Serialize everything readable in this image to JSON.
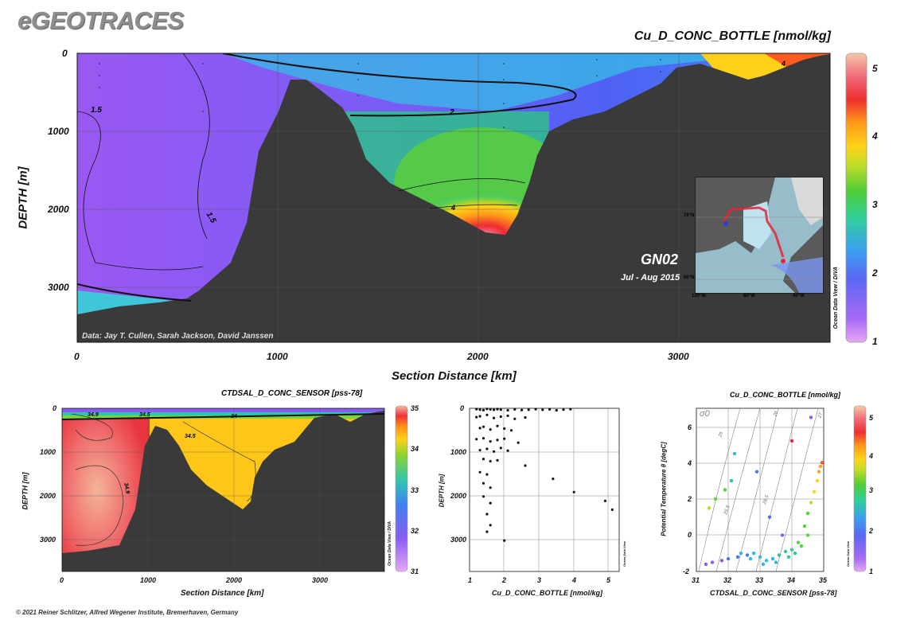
{
  "brand": "eGEOTRACES",
  "main_panel": {
    "title": "Cu_D_CONC_BOTTLE [nmol/kg]",
    "xlabel": "Section Distance [km]",
    "ylabel": "DEPTH [m]",
    "xticks": [
      "0",
      "1000",
      "2000",
      "3000"
    ],
    "yticks": [
      "0",
      "1000",
      "2000",
      "3000"
    ],
    "credit": "Data: Jay T. Cullen, Sarah Jackson, David Janssen",
    "section_name": "GN02",
    "section_dates": "Jul - Aug 2015",
    "contour_labels": [
      "1.5",
      "2",
      "1.5",
      "4",
      "4"
    ],
    "odv_label": "Ocean Data View / DIVA",
    "colorbar_ticks": [
      "1",
      "2",
      "3",
      "4",
      "5"
    ],
    "inset_map": {
      "lat_labels": [
        "70°N",
        "60°N"
      ],
      "lon_labels": [
        "120°W",
        "80°W",
        "40°W"
      ]
    }
  },
  "panel_sal": {
    "title": "CTDSAL_D_CONC_SENSOR [pss-78]",
    "xlabel": "Section Distance [km]",
    "ylabel": "DEPTH [m]",
    "xticks": [
      "0",
      "1000",
      "2000",
      "3000"
    ],
    "yticks": [
      "0",
      "1000",
      "2000",
      "3000"
    ],
    "contour_labels": [
      "34.9",
      "34.5",
      "34",
      "34.5",
      "34.9"
    ],
    "odv_label": "Ocean Data View / DIVA",
    "colorbar_ticks": [
      "31",
      "32",
      "33",
      "34",
      "35"
    ]
  },
  "panel_scatter": {
    "xlabel": "Cu_D_CONC_BOTTLE [nmol/kg]",
    "ylabel": "DEPTH [m]",
    "xticks": [
      "1",
      "2",
      "3",
      "4",
      "5"
    ],
    "yticks": [
      "0",
      "1000",
      "2000",
      "3000"
    ],
    "odv_label": "Ocean Data View"
  },
  "panel_ts": {
    "title": "Cu_D_CONC_BOTTLE [nmol/kg]",
    "xlabel": "CTDSAL_D_CONC_SENSOR [pss-78]",
    "ylabel": "Potential Temperature θ [degC]",
    "xticks": [
      "31",
      "32",
      "33",
      "34",
      "35"
    ],
    "yticks": [
      "-2",
      "0",
      "2",
      "4",
      "6"
    ],
    "sigma_label": "σ0",
    "isopycnal_labels": [
      "25",
      "25.5",
      "26",
      "26.5",
      "27"
    ],
    "odv_label": "Ocean Data View",
    "colorbar_ticks": [
      "1",
      "2",
      "3",
      "4",
      "5"
    ]
  },
  "footer": "© 2021 Reiner Schlitzer, Alfred Wegener Institute, Bremerhaven, Germany",
  "colors": {
    "bathymetry": "#3a3a3a",
    "colormap": [
      "#c879f0",
      "#8a5cf5",
      "#4a79f6",
      "#2fb6e8",
      "#2dcc8e",
      "#55d43a",
      "#b5e02a",
      "#ffd21a",
      "#ffa015",
      "#f5502a",
      "#e8253a",
      "#f07a8a",
      "#f5b89a"
    ]
  },
  "chart_data": [
    {
      "type": "heatmap",
      "title": "Cu_D_CONC_BOTTLE [nmol/kg]",
      "xlabel": "Section Distance [km]",
      "ylabel": "DEPTH [m]",
      "xlim": [
        0,
        3750
      ],
      "ylim": [
        3700,
        0
      ],
      "colorbar": {
        "min": 1,
        "max": 5.2,
        "ticks": [
          1,
          2,
          3,
          4,
          5
        ]
      },
      "contours": [
        1.5,
        2,
        4
      ],
      "surface_values": [
        1.2,
        1.3,
        1.6,
        2.0,
        2.2,
        2.3,
        2.8,
        3.0,
        3.3,
        4.0,
        4.8
      ]
    },
    {
      "type": "heatmap",
      "title": "CTDSAL_D_CONC_SENSOR [pss-78]",
      "xlabel": "Section Distance [km]",
      "ylabel": "DEPTH [m]",
      "xlim": [
        0,
        3750
      ],
      "ylim": [
        3700,
        0
      ],
      "colorbar": {
        "min": 31,
        "max": 35,
        "ticks": [
          31,
          32,
          33,
          34,
          35
        ]
      },
      "contours": [
        34,
        34.5,
        34.9
      ]
    },
    {
      "type": "scatter",
      "xlabel": "Cu_D_CONC_BOTTLE [nmol/kg]",
      "ylabel": "DEPTH [m]",
      "xlim": [
        1,
        5.3
      ],
      "ylim": [
        3700,
        0
      ],
      "x": [
        1.2,
        1.3,
        1.4,
        1.5,
        1.6,
        1.7,
        1.8,
        1.9,
        2.1,
        2.3,
        2.5,
        2.7,
        2.9,
        3.1,
        3.3,
        3.5,
        3.7,
        3.9,
        1.2,
        1.3,
        1.5,
        1.7,
        1.9,
        2.1,
        2.3,
        2.6,
        1.3,
        1.4,
        1.6,
        1.8,
        2.0,
        2.2,
        1.2,
        1.4,
        1.6,
        1.8,
        2.0,
        2.4,
        1.3,
        1.5,
        1.7,
        1.9,
        2.1,
        1.4,
        1.6,
        1.8,
        2.6,
        1.3,
        1.5,
        3.4,
        1.4,
        1.6,
        4.0,
        1.4,
        1.6,
        4.9,
        1.5,
        5.1,
        1.6,
        1.5,
        2.0
      ],
      "y": [
        20,
        30,
        40,
        15,
        25,
        35,
        20,
        30,
        45,
        25,
        40,
        30,
        20,
        35,
        25,
        45,
        30,
        20,
        200,
        180,
        150,
        220,
        190,
        170,
        240,
        210,
        450,
        420,
        480,
        400,
        460,
        500,
        700,
        680,
        750,
        720,
        690,
        780,
        950,
        920,
        980,
        900,
        960,
        1150,
        1200,
        1180,
        1300,
        1450,
        1500,
        1600,
        1700,
        1800,
        1900,
        2000,
        2150,
        2100,
        2400,
        2300,
        2650,
        2800,
        3000
      ]
    },
    {
      "type": "scatter",
      "title": "Cu_D_CONC_BOTTLE [nmol/kg]",
      "xlabel": "CTDSAL_D_CONC_SENSOR [pss-78]",
      "ylabel": "Potential Temperature θ [degC]",
      "xlim": [
        31,
        35
      ],
      "ylim": [
        -2,
        7
      ],
      "x": [
        31.3,
        31.5,
        31.8,
        32.0,
        32.3,
        32.6,
        32.8,
        33.0,
        33.2,
        33.4,
        33.6,
        33.8,
        34.0,
        34.2,
        34.4,
        34.5,
        34.6,
        34.7,
        34.8,
        34.85,
        34.9,
        34.95,
        34.5,
        34.3,
        34.1,
        33.9,
        33.5,
        33.1,
        32.7,
        32.4,
        32.1,
        31.9,
        31.6,
        31.4,
        32.2,
        32.9,
        33.3,
        33.7,
        34.0,
        34.6
      ],
      "y": [
        -1.6,
        -1.5,
        -1.4,
        -1.3,
        -1.2,
        -1.1,
        -1.0,
        -1.2,
        -1.4,
        -1.3,
        -1.1,
        -0.9,
        -0.8,
        -0.4,
        0.5,
        1.2,
        1.8,
        2.4,
        3.0,
        3.5,
        3.8,
        4.0,
        0.0,
        -0.6,
        -1.0,
        -1.2,
        -1.5,
        -1.6,
        -1.3,
        -1.0,
        3.0,
        2.5,
        2.0,
        1.5,
        4.5,
        3.5,
        1.0,
        0.0,
        5.2,
        6.5
      ],
      "c": [
        1.3,
        1.4,
        1.5,
        1.6,
        1.7,
        1.8,
        1.9,
        2.0,
        2.1,
        2.2,
        2.3,
        2.4,
        2.5,
        2.6,
        2.7,
        2.9,
        3.1,
        3.3,
        3.5,
        3.7,
        3.9,
        4.1,
        2.8,
        2.6,
        2.4,
        2.3,
        2.2,
        2.1,
        2.0,
        1.9,
        2.5,
        2.7,
        2.9,
        3.1,
        2.2,
        1.8,
        1.6,
        1.5,
        4.5,
        1.2
      ],
      "isopycnals": [
        25,
        25.5,
        26,
        26.5,
        27
      ]
    }
  ]
}
